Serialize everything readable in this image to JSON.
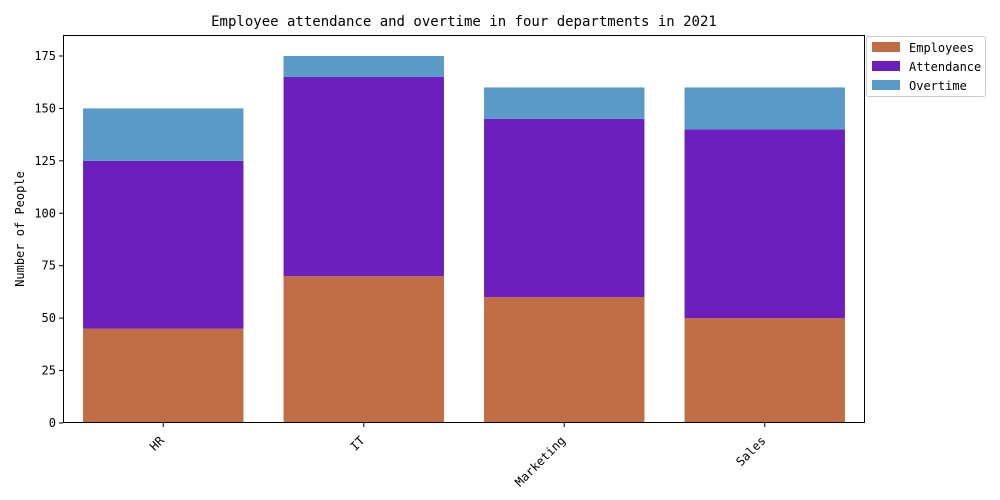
{
  "chart_data": {
    "type": "bar",
    "stacked": true,
    "title": "Employee attendance and overtime in four departments in 2021",
    "xlabel": "",
    "ylabel": "Number of People",
    "categories": [
      "HR",
      "IT",
      "Marketing",
      "Sales"
    ],
    "series": [
      {
        "name": "Employees",
        "color": "#c06c44",
        "values": [
          45,
          70,
          60,
          50
        ]
      },
      {
        "name": "Attendance",
        "color": "#6c1fbc",
        "values": [
          80,
          95,
          85,
          90
        ]
      },
      {
        "name": "Overtime",
        "color": "#5a9ac8",
        "values": [
          25,
          10,
          15,
          20
        ]
      }
    ],
    "ylim": [
      0,
      185
    ],
    "yticks": [
      "0",
      "25",
      "50",
      "75",
      "100",
      "125",
      "150",
      "175"
    ],
    "grid": false,
    "legend_position": "top-right outside",
    "xtick_rotation_deg": 45
  }
}
